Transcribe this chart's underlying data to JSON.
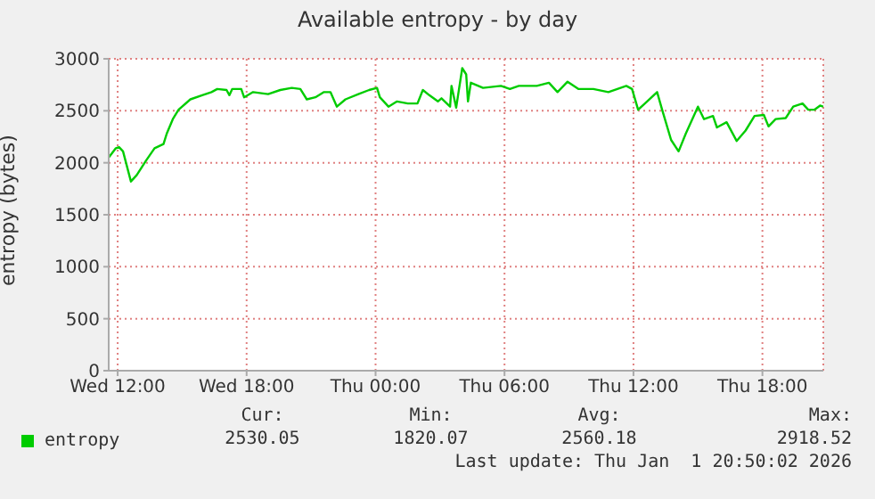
{
  "chart_data": {
    "type": "line",
    "title": "Available entropy - by day",
    "ylabel": "entropy (bytes)",
    "x": [
      "2025-12-31T11:35",
      "2025-12-31T11:55",
      "2025-12-31T12:04",
      "2025-12-31T12:15",
      "2025-12-31T12:37",
      "2025-12-31T12:53",
      "2025-12-31T13:19",
      "2025-12-31T13:43",
      "2025-12-31T14:08",
      "2025-12-31T14:17",
      "2025-12-31T14:34",
      "2025-12-31T14:50",
      "2025-12-31T15:23",
      "2025-12-31T15:56",
      "2025-12-31T16:22",
      "2025-12-31T16:38",
      "2025-12-31T17:04",
      "2025-12-31T17:12",
      "2025-12-31T17:20",
      "2025-12-31T17:45",
      "2025-12-31T17:53",
      "2025-12-31T18:18",
      "2025-12-31T19:00",
      "2025-12-31T19:34",
      "2025-12-31T20:06",
      "2025-12-31T20:30",
      "2025-12-31T20:48",
      "2025-12-31T21:12",
      "2025-12-31T21:36",
      "2025-12-31T21:54",
      "2025-12-31T22:12",
      "2025-12-31T22:36",
      "2025-12-31T23:12",
      "2025-12-31T23:42",
      "2026-01-01T00:04",
      "2026-01-01T00:12",
      "2026-01-01T00:36",
      "2026-01-01T01:00",
      "2026-01-01T01:30",
      "2026-01-01T01:57",
      "2026-01-01T02:12",
      "2026-01-01T02:30",
      "2026-01-01T02:54",
      "2026-01-01T03:04",
      "2026-01-01T03:28",
      "2026-01-01T03:32",
      "2026-01-01T03:45",
      "2026-01-01T03:53",
      "2026-01-01T04:02",
      "2026-01-01T04:13",
      "2026-01-01T04:18",
      "2026-01-01T04:26",
      "2026-01-01T05:00",
      "2026-01-01T05:50",
      "2026-01-01T06:15",
      "2026-01-01T06:40",
      "2026-01-01T07:30",
      "2026-01-01T08:04",
      "2026-01-01T08:28",
      "2026-01-01T08:56",
      "2026-01-01T09:26",
      "2026-01-01T10:08",
      "2026-01-01T10:50",
      "2026-01-01T11:40",
      "2026-01-01T11:56",
      "2026-01-01T12:13",
      "2026-01-01T12:38",
      "2026-01-01T13:06",
      "2026-01-01T13:20",
      "2026-01-01T13:45",
      "2026-01-01T14:06",
      "2026-01-01T14:26",
      "2026-01-01T15:00",
      "2026-01-01T15:17",
      "2026-01-01T15:42",
      "2026-01-01T15:53",
      "2026-01-01T16:20",
      "2026-01-01T16:48",
      "2026-01-01T17:13",
      "2026-01-01T17:38",
      "2026-01-01T18:04",
      "2026-01-01T18:17",
      "2026-01-01T18:37",
      "2026-01-01T19:05",
      "2026-01-01T19:26",
      "2026-01-01T19:52",
      "2026-01-01T20:08",
      "2026-01-01T20:25",
      "2026-01-01T20:41",
      "2026-01-01T20:50"
    ],
    "series": [
      {
        "name": "entropy",
        "color": "#00cc00",
        "values": [
          2050,
          2140,
          2150,
          2110,
          1820,
          1880,
          2020,
          2140,
          2180,
          2280,
          2420,
          2510,
          2610,
          2650,
          2680,
          2710,
          2700,
          2650,
          2710,
          2710,
          2630,
          2680,
          2660,
          2700,
          2720,
          2710,
          2610,
          2630,
          2680,
          2680,
          2540,
          2610,
          2660,
          2700,
          2720,
          2630,
          2540,
          2590,
          2570,
          2570,
          2700,
          2650,
          2590,
          2620,
          2540,
          2740,
          2530,
          2710,
          2910,
          2850,
          2590,
          2770,
          2720,
          2740,
          2710,
          2740,
          2740,
          2770,
          2680,
          2780,
          2710,
          2710,
          2680,
          2740,
          2710,
          2510,
          2590,
          2680,
          2510,
          2220,
          2110,
          2280,
          2540,
          2420,
          2450,
          2340,
          2390,
          2210,
          2310,
          2450,
          2460,
          2350,
          2420,
          2430,
          2540,
          2570,
          2510,
          2510,
          2550,
          2540
        ]
      }
    ],
    "xlim": [
      "2025-12-31T11:35",
      "2026-01-01T20:50"
    ],
    "xticks": [
      {
        "value": "2025-12-31T12:00",
        "label": "Wed 12:00"
      },
      {
        "value": "2025-12-31T18:00",
        "label": "Wed 18:00"
      },
      {
        "value": "2026-01-01T00:00",
        "label": "Thu 00:00"
      },
      {
        "value": "2026-01-01T06:00",
        "label": "Thu 06:00"
      },
      {
        "value": "2026-01-01T12:00",
        "label": "Thu 12:00"
      },
      {
        "value": "2026-01-01T18:00",
        "label": "Thu 18:00"
      }
    ],
    "ylim": [
      0,
      3000
    ],
    "yticks": [
      0,
      500,
      1000,
      1500,
      2000,
      2500,
      3000
    ],
    "grid": true,
    "legend": "bottom left",
    "marker": "none",
    "line_style": "solid",
    "annotations": [
      "Cur:",
      "Min:",
      "Avg:",
      "Max:",
      "2530.05",
      "1820.07",
      "2560.18",
      "2918.52",
      "Last update: Thu Jan  1 20:50:02 2026"
    ]
  }
}
